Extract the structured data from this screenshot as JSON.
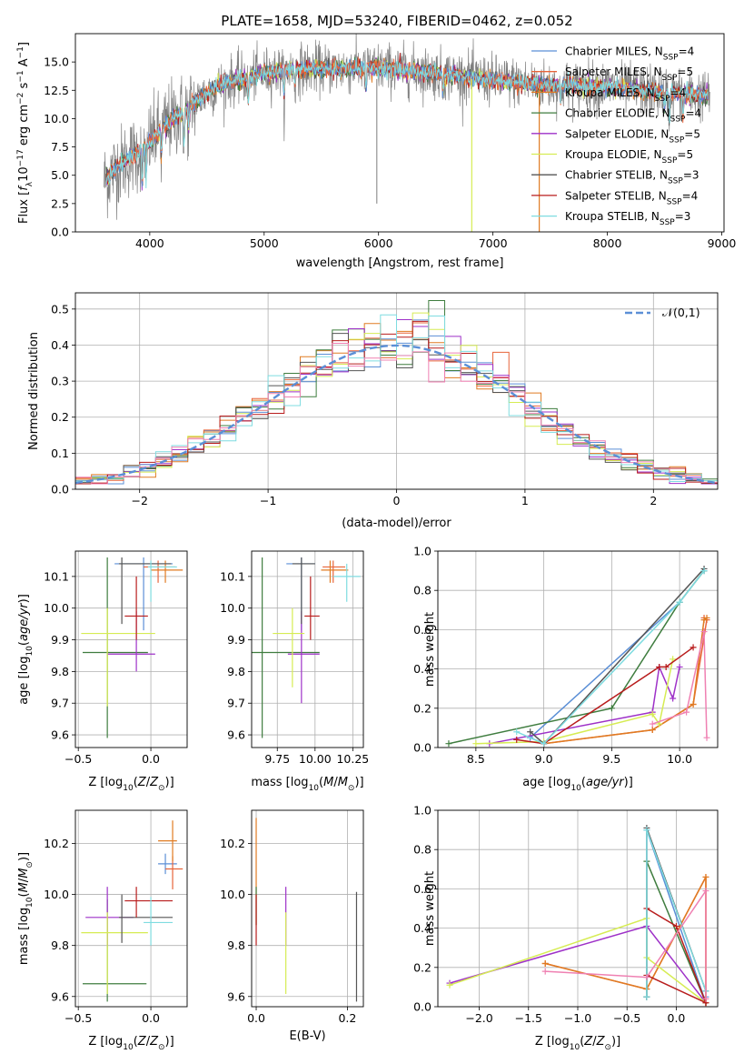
{
  "figure_title": "PLATE=1658, MJD=53240, FIBERID=0462, z=0.052",
  "series_names": [
    "Chabrier MILES",
    "Salpeter MILES",
    "Kroupa MILES",
    "Chabrier ELODIE",
    "Salpeter ELODIE",
    "Kroupa ELODIE",
    "Chabrier STELIB",
    "Salpeter STELIB",
    "Kroupa STELIB"
  ],
  "chart_data": [
    {
      "type": "line",
      "panel": "spectrum",
      "title": "PLATE=1658, MJD=53240, FIBERID=0462, z=0.052",
      "xlabel": "wavelength [Angstrom, rest frame]",
      "ylabel": "Flux [f_λ10^-17 erg cm^-2 s^-1 A^-1]",
      "xlim": [
        3350,
        9020
      ],
      "ylim": [
        0,
        17.5
      ],
      "xticks": [
        4000,
        5000,
        6000,
        7000,
        8000,
        9000
      ],
      "yticks": [
        0.0,
        2.5,
        5.0,
        7.5,
        10.0,
        12.5,
        15.0
      ],
      "continuum": {
        "wavelength": [
          3600,
          3700,
          3800,
          3900,
          4000,
          4100,
          4200,
          4300,
          4400,
          4500,
          4700,
          5000,
          5300,
          5600,
          6000,
          6500,
          7000,
          7500,
          8000,
          8500,
          8900
        ],
        "flux": [
          4.5,
          5.6,
          6.4,
          7.0,
          8.0,
          9.0,
          10.0,
          10.6,
          11.5,
          12.3,
          13.3,
          14.0,
          14.4,
          14.4,
          14.5,
          14.0,
          13.4,
          12.9,
          12.8,
          12.3,
          12.0
        ]
      },
      "legend": [
        {
          "label": "Chabrier MILES",
          "nssp": "4"
        },
        {
          "label": "Salpeter MILES",
          "nssp": "5"
        },
        {
          "label": "Kroupa MILES",
          "nssp": "4"
        },
        {
          "label": "Chabrier ELODIE",
          "nssp": "4"
        },
        {
          "label": "Salpeter ELODIE",
          "nssp": "5"
        },
        {
          "label": "Kroupa ELODIE",
          "nssp": "5"
        },
        {
          "label": "Chabrier STELIB",
          "nssp": "3"
        },
        {
          "label": "Salpeter STELIB",
          "nssp": "4"
        },
        {
          "label": "Kroupa STELIB",
          "nssp": "3"
        }
      ],
      "legend_position": "upper right"
    },
    {
      "type": "step",
      "panel": "residuals",
      "xlabel": "(data-model)/error",
      "ylabel": "Normed distribution",
      "xlim": [
        -2.5,
        2.5
      ],
      "ylim": [
        0,
        0.545
      ],
      "xticks": [
        -2,
        -1,
        0,
        1,
        2
      ],
      "yticks": [
        0.0,
        0.1,
        0.2,
        0.3,
        0.4,
        0.5
      ],
      "bins": 40,
      "reference_curve": "𝒩(0,1)",
      "legend_position": "upper right",
      "grid": true
    },
    {
      "type": "errorbar",
      "panel": "age-vs-Z",
      "xlabel": "Z [log10(Z/Z⊙)]",
      "ylabel": "age [log10(age/yr)]",
      "xlim": [
        -0.52,
        0.25
      ],
      "ylim": [
        9.56,
        10.18
      ],
      "xticks": [
        -0.5,
        0.0
      ],
      "yticks": [
        9.6,
        9.7,
        9.8,
        9.9,
        10.0,
        10.1
      ],
      "points": [
        {
          "x": -0.05,
          "y": 10.14,
          "xl": -0.25,
          "xh": 0.15,
          "yl": 9.93,
          "yh": 10.16
        },
        {
          "x": 0.05,
          "y": 10.13,
          "xl": -0.05,
          "xh": 0.17,
          "yl": 10.08,
          "yh": 10.15
        },
        {
          "x": 0.1,
          "y": 10.12,
          "xl": 0.0,
          "xh": 0.22,
          "yl": 10.08,
          "yh": 10.15
        },
        {
          "x": -0.3,
          "y": 9.86,
          "xl": -0.47,
          "xh": -0.02,
          "yl": 9.59,
          "yh": 10.16
        },
        {
          "x": -0.1,
          "y": 9.855,
          "xl": -0.3,
          "xh": 0.03,
          "yl": 9.8,
          "yh": 9.99
        },
        {
          "x": -0.3,
          "y": 9.92,
          "xl": -0.48,
          "xh": 0.03,
          "yl": 9.69,
          "yh": 10.0
        },
        {
          "x": -0.2,
          "y": 10.14,
          "xl": -0.22,
          "xh": 0.14,
          "yl": 9.95,
          "yh": 10.16
        },
        {
          "x": -0.1,
          "y": 9.975,
          "xl": -0.18,
          "xh": -0.02,
          "yl": 9.9,
          "yh": 10.1
        },
        {
          "x": 0.0,
          "y": 10.13,
          "xl": -0.02,
          "xh": 0.18,
          "yl": 10.02,
          "yh": 10.15
        }
      ]
    },
    {
      "type": "errorbar",
      "panel": "age-vs-mass",
      "xlabel": "mass [log10(M/M⊙)]",
      "xlim": [
        9.58,
        10.32
      ],
      "ylim": [
        9.56,
        10.18
      ],
      "xticks": [
        9.75,
        10.0,
        10.25
      ],
      "xtick_labels": [
        "9.75",
        "10.00",
        "10.25"
      ],
      "yticks": [
        9.6,
        9.7,
        9.8,
        9.9,
        10.0,
        10.1
      ],
      "points": [
        {
          "x": 9.91,
          "y": 10.14,
          "xl": 9.81,
          "xh": 10.0,
          "yl": 9.93,
          "yh": 10.16
        },
        {
          "x": 10.12,
          "y": 10.13,
          "xl": 10.05,
          "xh": 10.2,
          "yl": 10.08,
          "yh": 10.15
        },
        {
          "x": 10.1,
          "y": 10.12,
          "xl": 10.04,
          "xh": 10.22,
          "yl": 10.08,
          "yh": 10.15
        },
        {
          "x": 9.65,
          "y": 9.86,
          "xl": 9.58,
          "xh": 10.03,
          "yl": 9.59,
          "yh": 10.16
        },
        {
          "x": 9.91,
          "y": 9.855,
          "xl": 9.82,
          "xh": 10.03,
          "yl": 9.7,
          "yh": 9.99
        },
        {
          "x": 9.85,
          "y": 9.92,
          "xl": 9.72,
          "xh": 9.93,
          "yl": 9.75,
          "yh": 10.0
        },
        {
          "x": 9.91,
          "y": 10.14,
          "xl": 9.85,
          "xh": 10.0,
          "yl": 9.95,
          "yh": 10.16
        },
        {
          "x": 9.97,
          "y": 9.975,
          "xl": 9.93,
          "xh": 10.03,
          "yl": 9.9,
          "yh": 10.1
        },
        {
          "x": 10.21,
          "y": 10.1,
          "xl": 10.12,
          "xh": 10.3,
          "yl": 10.02,
          "yh": 10.14
        }
      ]
    },
    {
      "type": "line",
      "panel": "mass-weight-vs-age",
      "xlabel": "age [log10(age/yr)]",
      "ylabel": "mass weight",
      "xlim": [
        8.22,
        10.28
      ],
      "ylim": [
        0,
        1.0
      ],
      "xticks": [
        8.5,
        9.0,
        9.5,
        10.0
      ],
      "yticks": [
        0.0,
        0.2,
        0.4,
        0.6,
        0.8,
        1.0
      ],
      "series": [
        {
          "name": "Chabrier MILES",
          "x": [
            9.0,
            8.9,
            10.0,
            10.18
          ],
          "y": [
            0.02,
            0.05,
            0.74,
            0.9
          ]
        },
        {
          "name": "Salpeter MILES",
          "x": [
            9.0,
            9.8,
            10.1,
            10.2,
            10.18
          ],
          "y": [
            0.02,
            0.09,
            0.22,
            0.65,
            0.66
          ]
        },
        {
          "name": "Kroupa MILES",
          "x": [
            9.0,
            9.8,
            10.1,
            10.18,
            10.2
          ],
          "y": [
            0.02,
            0.09,
            0.22,
            0.65,
            0.66
          ]
        },
        {
          "name": "Chabrier ELODIE",
          "x": [
            8.3,
            9.5,
            10.0,
            10.18
          ],
          "y": [
            0.02,
            0.2,
            0.74,
            0.9
          ]
        },
        {
          "name": "Salpeter ELODIE",
          "x": [
            8.6,
            9.8,
            9.85,
            9.95,
            10.0
          ],
          "y": [
            0.02,
            0.18,
            0.41,
            0.25,
            0.41
          ]
        },
        {
          "name": "Kroupa ELODIE",
          "x": [
            8.5,
            9.0,
            9.8,
            9.85,
            9.95
          ],
          "y": [
            0.02,
            0.03,
            0.17,
            0.12,
            0.45
          ]
        },
        {
          "name": "Chabrier STELIB",
          "x": [
            8.9,
            9.0,
            10.18
          ],
          "y": [
            0.08,
            0.02,
            0.91
          ]
        },
        {
          "name": "Salpeter STELIB",
          "x": [
            8.8,
            9.0,
            9.85,
            9.9,
            10.1
          ],
          "y": [
            0.04,
            0.02,
            0.41,
            0.41,
            0.51
          ]
        },
        {
          "name": "Kroupa STELIB",
          "x": [
            8.8,
            9.0,
            10.0,
            10.18
          ],
          "y": [
            0.08,
            0.02,
            0.74,
            0.9
          ]
        },
        {
          "name": "extra",
          "x": [
            9.8,
            10.05,
            10.18,
            10.2
          ],
          "y": [
            0.12,
            0.18,
            0.59,
            0.05
          ]
        }
      ],
      "grid": true
    },
    {
      "type": "errorbar",
      "panel": "mass-vs-Z",
      "xlabel": "Z [log10(Z/Z⊙)]",
      "ylabel": "mass [log10(M/M⊙)]",
      "xlim": [
        -0.52,
        0.25
      ],
      "ylim": [
        9.56,
        10.33
      ],
      "xticks": [
        -0.5,
        0.0
      ],
      "yticks": [
        9.6,
        9.8,
        10.0,
        10.2
      ],
      "points": [
        {
          "x": 0.1,
          "y": 10.12,
          "xl": 0.05,
          "xh": 0.18,
          "yl": 10.08,
          "yh": 10.16
        },
        {
          "x": 0.15,
          "y": 10.1,
          "xl": 0.1,
          "xh": 0.22,
          "yl": 10.02,
          "yh": 10.15
        },
        {
          "x": 0.15,
          "y": 10.21,
          "xl": 0.05,
          "xh": 0.18,
          "yl": 10.13,
          "yh": 10.29
        },
        {
          "x": -0.3,
          "y": 9.65,
          "xl": -0.47,
          "xh": -0.03,
          "yl": 9.58,
          "yh": 9.98
        },
        {
          "x": -0.3,
          "y": 9.91,
          "xl": -0.45,
          "xh": -0.12,
          "yl": 9.8,
          "yh": 10.03
        },
        {
          "x": -0.3,
          "y": 9.85,
          "xl": -0.48,
          "xh": -0.02,
          "yl": 9.61,
          "yh": 9.93
        },
        {
          "x": -0.2,
          "y": 9.91,
          "xl": -0.22,
          "xh": 0.15,
          "yl": 9.81,
          "yh": 10.0
        },
        {
          "x": -0.1,
          "y": 9.975,
          "xl": -0.18,
          "xh": 0.15,
          "yl": 9.91,
          "yh": 10.03
        },
        {
          "x": 0.0,
          "y": 9.89,
          "xl": -0.05,
          "xh": 0.15,
          "yl": 9.8,
          "yh": 9.99
        }
      ]
    },
    {
      "type": "errorbar",
      "panel": "mass-vs-ebv",
      "xlabel": "E(B-V)",
      "xlim": [
        -0.01,
        0.235
      ],
      "ylim": [
        9.56,
        10.33
      ],
      "xticks": [
        0.0,
        0.2
      ],
      "yticks": [
        9.6,
        9.8,
        10.0,
        10.2
      ],
      "points": [
        {
          "x": 0.0,
          "y": 10.1,
          "yl": 9.88,
          "yh": 10.3
        },
        {
          "x": 0.0,
          "y": 9.95,
          "yl": 9.88,
          "yh": 10.03
        },
        {
          "x": 0.065,
          "y": 9.91,
          "yl": 9.8,
          "yh": 10.03
        },
        {
          "x": 0.065,
          "y": 9.85,
          "yl": 9.61,
          "yh": 9.93
        },
        {
          "x": 0.22,
          "y": 9.8,
          "yl": 9.58,
          "yh": 10.01
        },
        {
          "x": 0.0,
          "y": 9.9,
          "yl": 9.8,
          "yh": 10.0
        }
      ]
    },
    {
      "type": "line",
      "panel": "mass-weight-vs-Z",
      "xlabel": "Z [log10(Z/Z⊙)]",
      "ylabel": "mass weight",
      "xlim": [
        -2.42,
        0.42
      ],
      "ylim": [
        0,
        1.0
      ],
      "xticks": [
        -2.0,
        -1.5,
        -1.0,
        -0.5,
        0.0
      ],
      "yticks": [
        0.0,
        0.2,
        0.4,
        0.6,
        0.8,
        1.0
      ],
      "series": [
        {
          "name": "Chabrier MILES",
          "x": [
            -0.3,
            -0.3,
            0.3,
            0.3
          ],
          "y": [
            0.05,
            0.9,
            0.02,
            0.05
          ]
        },
        {
          "name": "Salpeter MILES",
          "x": [
            -1.33,
            -0.3,
            0.3,
            0.3
          ],
          "y": [
            0.22,
            0.09,
            0.66,
            0.02
          ]
        },
        {
          "name": "Kroupa MILES",
          "x": [
            -1.33,
            -0.3,
            0.3,
            0.3
          ],
          "y": [
            0.22,
            0.09,
            0.66,
            0.02
          ]
        },
        {
          "name": "Chabrier ELODIE",
          "x": [
            -0.3,
            -0.3,
            0.3
          ],
          "y": [
            0.05,
            0.74,
            0.02
          ]
        },
        {
          "name": "Salpeter ELODIE",
          "x": [
            -2.3,
            -0.3,
            0.3
          ],
          "y": [
            0.12,
            0.41,
            0.02
          ]
        },
        {
          "name": "Kroupa ELODIE",
          "x": [
            -2.3,
            -0.3,
            -0.3,
            0.3
          ],
          "y": [
            0.11,
            0.45,
            0.25,
            0.02
          ]
        },
        {
          "name": "Chabrier STELIB",
          "x": [
            -0.3,
            -0.3,
            0.3
          ],
          "y": [
            0.05,
            0.91,
            0.08
          ]
        },
        {
          "name": "Salpeter STELIB",
          "x": [
            -0.3,
            0.0,
            0.3,
            -0.3
          ],
          "y": [
            0.5,
            0.41,
            0.02,
            0.16
          ]
        },
        {
          "name": "Kroupa STELIB",
          "x": [
            -0.3,
            -0.3,
            0.3
          ],
          "y": [
            0.05,
            0.9,
            0.08
          ]
        },
        {
          "name": "extra",
          "x": [
            -1.33,
            -0.3,
            0.3,
            0.3
          ],
          "y": [
            0.18,
            0.15,
            0.59,
            0.04
          ]
        }
      ],
      "grid": true
    }
  ],
  "colors": {
    "Chabrier MILES": "#5b8fd6",
    "Salpeter MILES": "#e8643a",
    "Kroupa MILES": "#e07b22",
    "Chabrier ELODIE": "#3f7d3f",
    "Salpeter ELODIE": "#9e31c8",
    "Kroupa ELODIE": "#d6ec53",
    "Chabrier STELIB": "#555555",
    "Salpeter STELIB": "#b81c1c",
    "Kroupa STELIB": "#7fdce0",
    "extra": "#ef80b2",
    "reference_curve": "#5b8fd6"
  }
}
